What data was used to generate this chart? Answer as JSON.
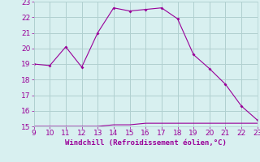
{
  "x": [
    9,
    10,
    11,
    12,
    13,
    14,
    15,
    16,
    17,
    18,
    19,
    20,
    21,
    22,
    23
  ],
  "y_main": [
    19.0,
    18.9,
    20.1,
    18.8,
    21.0,
    22.6,
    22.4,
    22.5,
    22.6,
    21.9,
    19.6,
    18.7,
    17.7,
    16.3,
    15.4
  ],
  "y_flat": [
    15.0,
    15.0,
    15.0,
    15.0,
    15.0,
    15.1,
    15.1,
    15.2,
    15.2,
    15.2,
    15.2,
    15.2,
    15.2,
    15.2,
    15.2
  ],
  "line_color": "#990099",
  "background_color": "#d8f0f0",
  "grid_color": "#b0d0d0",
  "xlabel": "Windchill (Refroidissement éolien,°C)",
  "xlim": [
    9,
    23
  ],
  "ylim": [
    15,
    23
  ],
  "yticks": [
    15,
    16,
    17,
    18,
    19,
    20,
    21,
    22,
    23
  ],
  "xticks": [
    9,
    10,
    11,
    12,
    13,
    14,
    15,
    16,
    17,
    18,
    19,
    20,
    21,
    22,
    23
  ],
  "tick_color": "#990099",
  "label_fontsize": 6.5,
  "tick_fontsize": 6.5
}
